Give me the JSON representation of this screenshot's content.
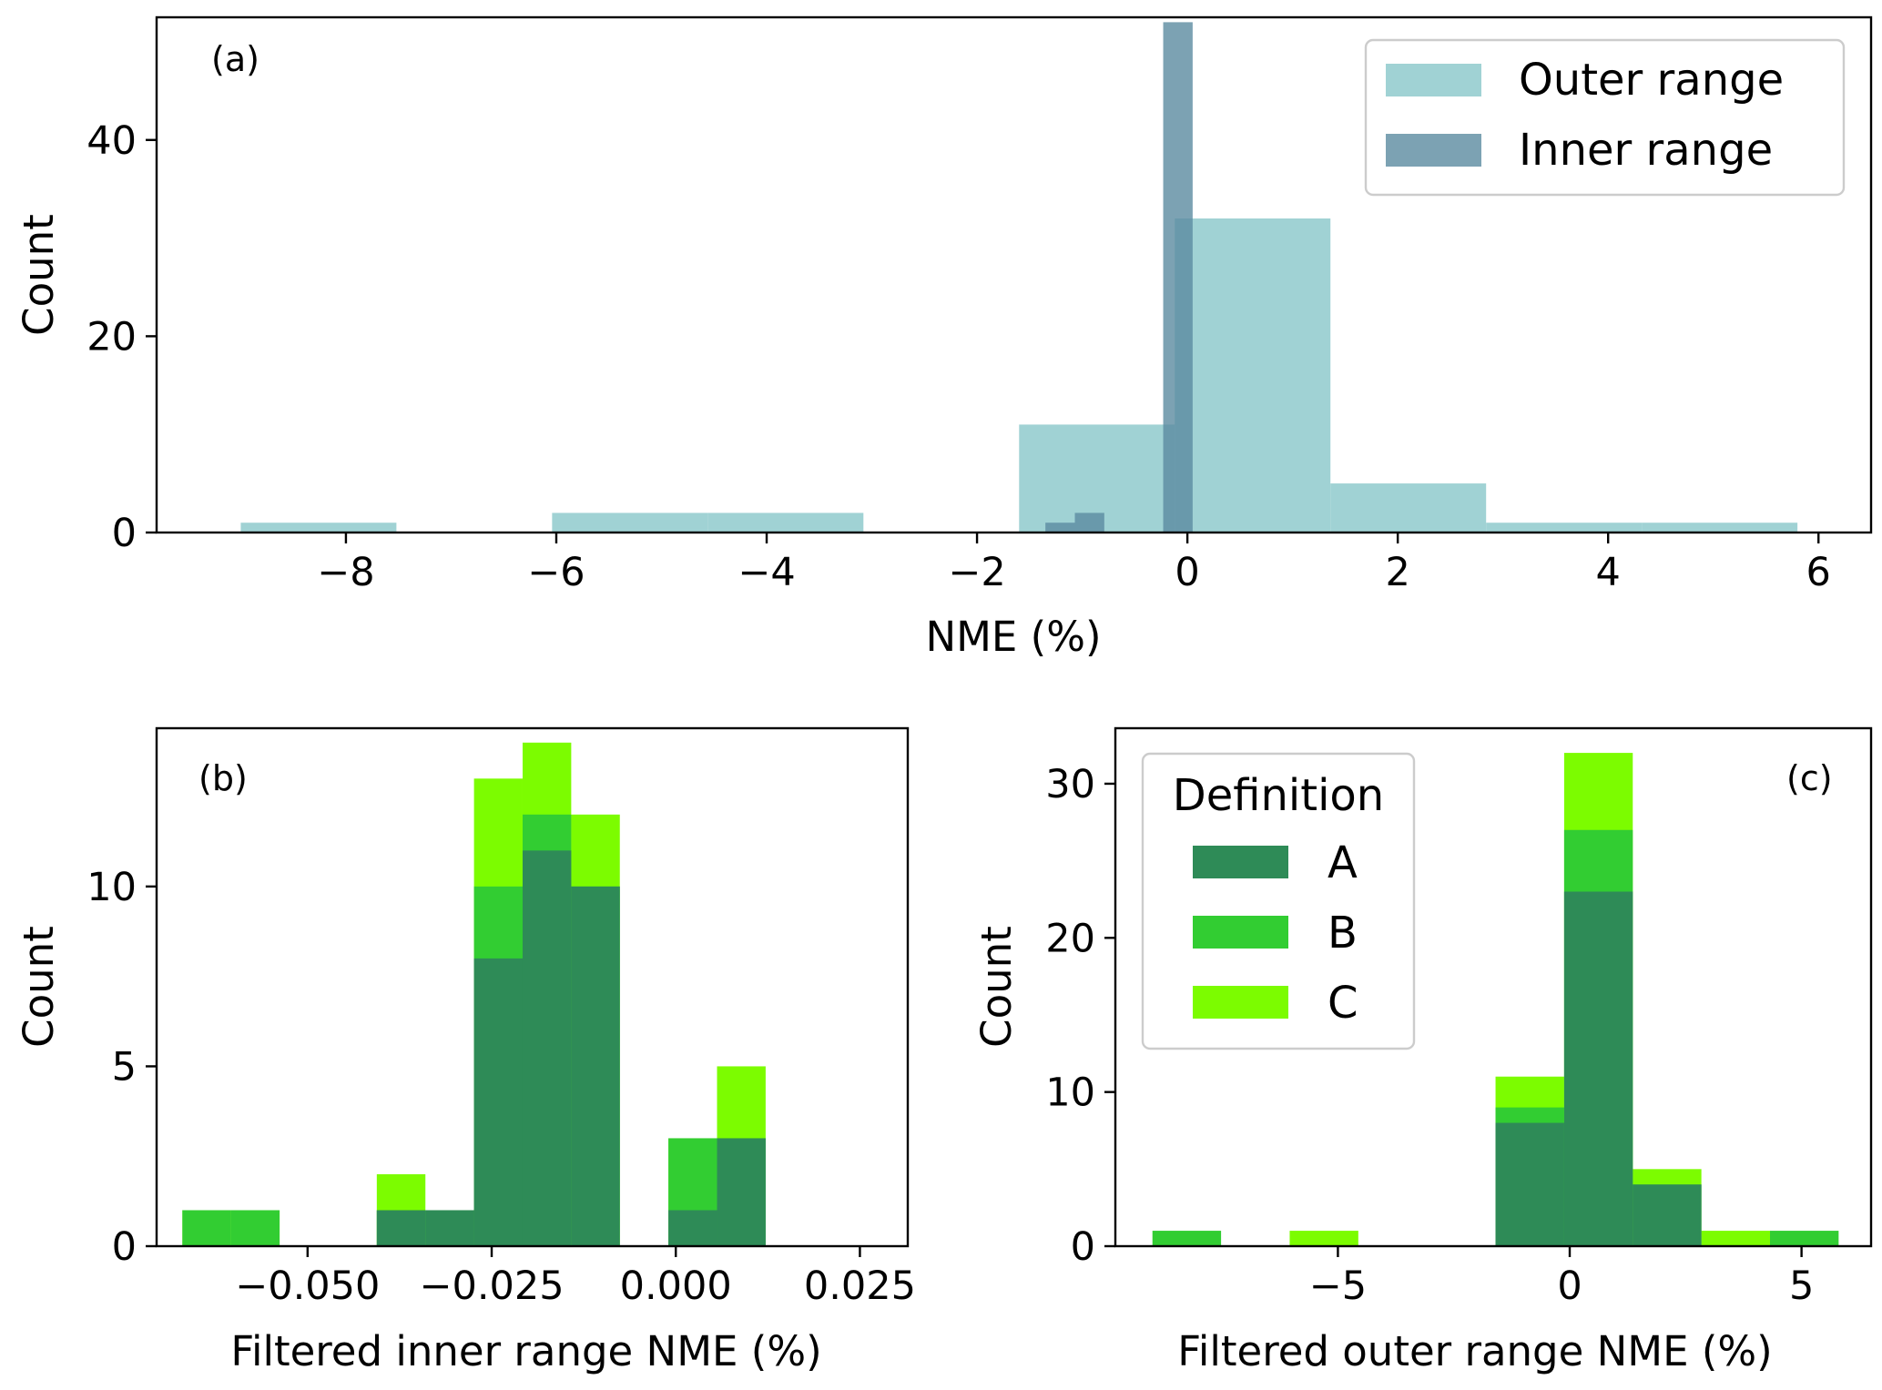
{
  "colors": {
    "outer": "#8fcacc",
    "inner": "#5b8ba0",
    "A": "#2e8b57",
    "B": "#32cd32",
    "C": "#7cfc00"
  },
  "chart_data": [
    {
      "id": "a",
      "type": "bar",
      "panel_label": "(a)",
      "xlabel": "NME (%)",
      "ylabel": "Count",
      "xlim": [
        -9.8,
        6.5
      ],
      "ylim": [
        0,
        52.5
      ],
      "xticks": [
        -8,
        -6,
        -4,
        -2,
        0,
        2,
        4,
        6
      ],
      "xtick_labels": [
        "−8",
        "−6",
        "−4",
        "−2",
        "0",
        "2",
        "4",
        "6"
      ],
      "yticks": [
        0,
        20,
        40
      ],
      "ytick_labels": [
        "0",
        "20",
        "40"
      ],
      "legend": {
        "position": "top-right",
        "title": ""
      },
      "series": [
        {
          "name": "Outer range",
          "color_key": "outer",
          "opacity": 0.85,
          "bin_edges": [
            -9.0,
            -7.52,
            -6.04,
            -4.56,
            -3.08,
            -1.6,
            -0.12,
            1.36,
            2.84,
            4.32,
            5.8
          ],
          "counts": [
            1,
            0,
            2,
            2,
            0,
            11,
            32,
            5,
            1,
            1
          ]
        },
        {
          "name": "Inner range",
          "color_key": "inner",
          "opacity": 0.8,
          "bin_edges": [
            -1.35,
            -1.07,
            -0.79,
            -0.51,
            -0.23,
            0.05
          ],
          "counts": [
            1,
            2,
            0,
            0,
            52
          ]
        }
      ]
    },
    {
      "id": "b",
      "type": "bar",
      "panel_label": "(b)",
      "xlabel": "Filtered inner range NME (%)",
      "ylabel": "Count",
      "xlim": [
        -0.0705,
        0.0315
      ],
      "ylim": [
        0,
        14.4
      ],
      "xticks": [
        -0.05,
        -0.025,
        0.0,
        0.025
      ],
      "xtick_labels": [
        "−0.050",
        "−0.025",
        "0.000",
        "0.025"
      ],
      "yticks": [
        0,
        5,
        10
      ],
      "ytick_labels": [
        "0",
        "5",
        "10"
      ],
      "bin_edges": [
        -0.067,
        -0.0604,
        -0.0538,
        -0.0472,
        -0.0406,
        -0.034,
        -0.0274,
        -0.0208,
        -0.0142,
        -0.0076,
        -0.001,
        0.0056,
        0.0122
      ],
      "series": [
        {
          "name": "C",
          "color_key": "C",
          "counts": [
            1,
            1,
            0,
            0,
            2,
            1,
            13,
            14,
            12,
            0,
            3,
            5
          ]
        },
        {
          "name": "B",
          "color_key": "B",
          "counts": [
            1,
            1,
            0,
            0,
            1,
            1,
            10,
            12,
            10,
            0,
            3,
            3
          ]
        },
        {
          "name": "A",
          "color_key": "A",
          "counts": [
            0,
            0,
            0,
            0,
            1,
            1,
            8,
            11,
            10,
            0,
            1,
            3
          ]
        }
      ]
    },
    {
      "id": "c",
      "type": "bar",
      "panel_label": "(c)",
      "xlabel": "Filtered outer range NME (%)",
      "ylabel": "Count",
      "xlim": [
        -9.8,
        6.5
      ],
      "ylim": [
        0,
        33.6
      ],
      "xticks": [
        -5,
        0,
        5
      ],
      "xtick_labels": [
        "−5",
        "0",
        "5"
      ],
      "yticks": [
        0,
        10,
        20,
        30
      ],
      "ytick_labels": [
        "0",
        "10",
        "20",
        "30"
      ],
      "legend": {
        "position": "top-left",
        "title": "Definition"
      },
      "bin_edges": [
        -9.0,
        -7.52,
        -6.04,
        -4.56,
        -3.08,
        -1.6,
        -0.12,
        1.36,
        2.84,
        4.32,
        5.8
      ],
      "series": [
        {
          "name": "A",
          "color_key": "A",
          "counts": [
            0,
            0,
            0,
            0,
            0,
            8,
            23,
            4,
            0,
            0
          ]
        },
        {
          "name": "B",
          "color_key": "B",
          "counts": [
            1,
            0,
            0,
            0,
            0,
            9,
            27,
            4,
            0,
            1
          ]
        },
        {
          "name": "C",
          "color_key": "C",
          "counts": [
            0,
            0,
            1,
            0,
            0,
            11,
            32,
            5,
            1,
            0
          ]
        }
      ]
    }
  ]
}
